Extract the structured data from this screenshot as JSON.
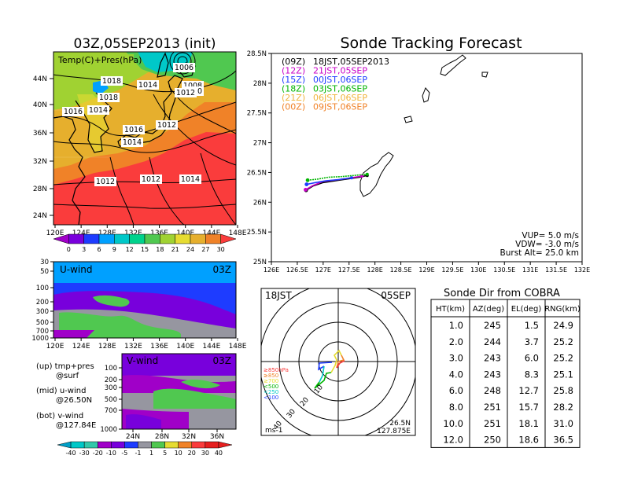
{
  "left_title": "03Z,05SEP2013 (init)",
  "main_title": "Sonde Tracking Forecast",
  "map1": {
    "label": "Temp(C)+Pres(hPa)",
    "lat_ticks": [
      "44N",
      "40N",
      "36N",
      "32N",
      "28N",
      "24N"
    ],
    "lon_ticks": [
      "120E",
      "124E",
      "128E",
      "132E",
      "136E",
      "140E",
      "144E",
      "148E"
    ],
    "isobar_labels": [
      "1006",
      "1008",
      "1010",
      "1012",
      "1014",
      "1016",
      "1018",
      "1018",
      "1014",
      "1016",
      "1012",
      "1014",
      "1012",
      "1012",
      "1014",
      "1012"
    ],
    "colorbar_labels": [
      "0",
      "3",
      "6",
      "9",
      "12",
      "15",
      "18",
      "21",
      "24",
      "27",
      "30"
    ],
    "colorbar_colors": [
      "#a000c8",
      "#7a00dc",
      "#1e3cff",
      "#00a0ff",
      "#00c8c8",
      "#00d28c",
      "#50c850",
      "#a0d232",
      "#e6dc32",
      "#e6af2d",
      "#f08228",
      "#fa3c3c"
    ]
  },
  "u_panel": {
    "label": "U-wind",
    "time": "03Z",
    "y_ticks": [
      "30",
      "50",
      "100",
      "200",
      "300",
      "500",
      "700",
      "1000"
    ],
    "x_ticks": [
      "120E",
      "124E",
      "128E",
      "132E",
      "136E",
      "140E",
      "144E",
      "148E"
    ]
  },
  "v_panel": {
    "label": "V-wind",
    "time": "03Z",
    "y_ticks": [
      "100",
      "200",
      "300",
      "500",
      "700",
      "1000"
    ],
    "x_ticks": [
      "24N",
      "28N",
      "32N",
      "36N"
    ],
    "colorbar_labels": [
      "-40",
      "-30",
      "-20",
      "-10",
      "-5",
      "-1",
      "1",
      "5",
      "10",
      "20",
      "30",
      "40"
    ],
    "colorbar_colors": [
      "#00a0c8",
      "#00c8c8",
      "#32c8aa",
      "#a000c8",
      "#7800dc",
      "#1e3cff",
      "#9696a0",
      "#50c850",
      "#e6dc32",
      "#f08228",
      "#fa3c3c",
      "#e61e1e"
    ]
  },
  "legend_notes": [
    "(up) tmp+pres",
    "@surf",
    "(mid) u-wind",
    "@26.50N",
    "(bot) v-wind",
    "@127.84E"
  ],
  "track_map": {
    "lat_ticks": [
      "28.5N",
      "28N",
      "27.5N",
      "27N",
      "26.5N",
      "26N",
      "25.5N",
      "25N"
    ],
    "lon_ticks": [
      "126E",
      "126.5E",
      "127E",
      "127.5E",
      "128E",
      "128.5E",
      "129E",
      "129.5E",
      "130E",
      "130.5E",
      "131E",
      "131.5E",
      "132E"
    ],
    "legend": [
      {
        "run": "(09Z)",
        "time": "18JST,05SEP2013",
        "color": "#000000"
      },
      {
        "run": "(12Z)",
        "time": "21JST,05SEP",
        "color": "#c800c8"
      },
      {
        "run": "(15Z)",
        "time": "00JST,06SEP",
        "color": "#1e3cff"
      },
      {
        "run": "(18Z)",
        "time": "03JST,06SEP",
        "color": "#00b400"
      },
      {
        "run": "(21Z)",
        "time": "06JST,06SEP",
        "color": "#f0b43c"
      },
      {
        "run": "(00Z)",
        "time": "09JST,06SEP",
        "color": "#f08228"
      }
    ],
    "params": [
      "VUP= 5.0 m/s",
      "VDW= -3.0 m/s",
      "Burst Alt= 25.0 km"
    ]
  },
  "hodograph": {
    "time": "18JST",
    "date": "05SEP",
    "ring_labels": [
      "10",
      "20",
      "30",
      "40"
    ],
    "levels": [
      {
        "label": "≥850hPa",
        "color": "#fa3c3c"
      },
      {
        "label": "≥850",
        "color": "#f08228"
      },
      {
        "label": "≥700",
        "color": "#e6dc32"
      },
      {
        "label": "<500",
        "color": "#00b400"
      },
      {
        "label": "<250",
        "color": "#00c8c8"
      },
      {
        "label": "<100",
        "color": "#1e3cff"
      }
    ],
    "unit": "ms-1",
    "lat": "26.5N",
    "lon": "127.875E"
  },
  "table": {
    "title": "Sonde Dir from COBRA",
    "headers": [
      "HT(km)",
      "AZ(deg)",
      "EL(deg)",
      "RNG(km)"
    ],
    "rows": [
      [
        "1.0",
        "245",
        "1.5",
        "24.9"
      ],
      [
        "2.0",
        "244",
        "3.7",
        "25.2"
      ],
      [
        "3.0",
        "243",
        "6.0",
        "25.2"
      ],
      [
        "4.0",
        "243",
        "8.3",
        "25.1"
      ],
      [
        "6.0",
        "248",
        "12.7",
        "25.8"
      ],
      [
        "8.0",
        "251",
        "15.7",
        "28.2"
      ],
      [
        "10.0",
        "251",
        "18.1",
        "31.0"
      ],
      [
        "12.0",
        "250",
        "18.6",
        "36.5"
      ]
    ]
  },
  "chart_data": [
    {
      "type": "heatmap",
      "title": "03Z,05SEP2013 (init)",
      "label": "Temp(C)+Pres(hPa)",
      "x_ticks": [
        "120E",
        "124E",
        "128E",
        "132E",
        "136E",
        "140E",
        "144E",
        "148E"
      ],
      "y_ticks": [
        "24N",
        "28N",
        "32N",
        "36N",
        "40N",
        "44N"
      ],
      "colorbar": [
        0,
        3,
        6,
        9,
        12,
        15,
        18,
        21,
        24,
        27,
        30
      ],
      "isobars_hPa": [
        1006,
        1008,
        1010,
        1012,
        1014,
        1016,
        1018
      ]
    },
    {
      "type": "heatmap",
      "label": "U-wind",
      "time": "03Z",
      "y_ticks_hPa": [
        30,
        50,
        100,
        200,
        300,
        500,
        700,
        1000
      ],
      "x_ticks": [
        "120E",
        "124E",
        "128E",
        "132E",
        "136E",
        "140E",
        "144E",
        "148E"
      ]
    },
    {
      "type": "heatmap",
      "label": "V-wind",
      "time": "03Z",
      "y_ticks_hPa": [
        100,
        200,
        300,
        500,
        700,
        1000
      ],
      "x_ticks": [
        "24N",
        "28N",
        "32N",
        "36N"
      ],
      "colorbar": [
        -40,
        -30,
        -20,
        -10,
        -5,
        -1,
        1,
        5,
        10,
        20,
        30,
        40
      ]
    },
    {
      "type": "line",
      "title": "Sonde Tracking Forecast",
      "xlim": [
        126,
        132
      ],
      "ylim": [
        25,
        28.5
      ],
      "series": [
        {
          "name": "(09Z) 18JST,05SEP2013",
          "x": [
            126.67,
            126.8,
            127.0,
            127.3,
            127.55,
            127.7,
            127.85
          ],
          "y": [
            26.2,
            26.27,
            26.33,
            26.37,
            26.4,
            26.42,
            26.45
          ]
        },
        {
          "name": "(12Z) 21JST,05SEP",
          "x": [
            126.66,
            126.8,
            127.0,
            127.3,
            127.55,
            127.75
          ],
          "y": [
            26.21,
            26.28,
            26.35,
            26.38,
            26.41,
            26.44
          ]
        },
        {
          "name": "(15Z) 00JST,06SEP",
          "x": [
            126.68,
            126.85,
            127.05,
            127.3,
            127.55
          ],
          "y": [
            26.3,
            26.33,
            26.36,
            26.38,
            26.41
          ]
        },
        {
          "name": "(18Z) 03JST,06SEP",
          "x": [
            126.7,
            126.9,
            127.1,
            127.35,
            127.6,
            127.85
          ],
          "y": [
            26.37,
            26.39,
            26.42,
            26.43,
            26.45,
            26.47
          ]
        }
      ]
    },
    {
      "type": "table",
      "title": "Sonde Dir from COBRA",
      "columns": [
        "HT(km)",
        "AZ(deg)",
        "EL(deg)",
        "RNG(km)"
      ],
      "rows": [
        [
          1.0,
          245,
          1.5,
          24.9
        ],
        [
          2.0,
          244,
          3.7,
          25.2
        ],
        [
          3.0,
          243,
          6.0,
          25.2
        ],
        [
          4.0,
          243,
          8.3,
          25.1
        ],
        [
          6.0,
          248,
          12.7,
          25.8
        ],
        [
          8.0,
          251,
          15.7,
          28.2
        ],
        [
          10.0,
          251,
          18.1,
          31.0
        ],
        [
          12.0,
          250,
          18.6,
          36.5
        ]
      ]
    }
  ]
}
